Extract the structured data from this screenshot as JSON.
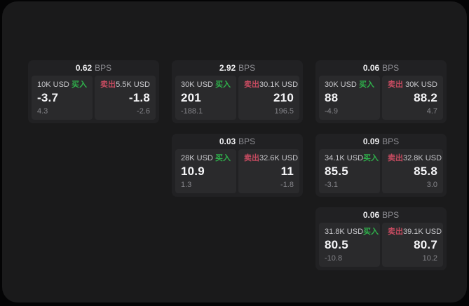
{
  "labels": {
    "buy": "买入",
    "sell": "卖出",
    "bps_unit": "BPS"
  },
  "colors": {
    "page_bg": "#040405",
    "panel_bg": "#1a1a1b",
    "card_bg": "#212123",
    "pane_bg": "#2a2a2c",
    "buy_green": "#2fb04b",
    "sell_red": "#c54b60"
  },
  "cards": [
    {
      "bps": "0.62",
      "col": 1,
      "row": 1,
      "buy": {
        "amount": "10K USD",
        "price": "-3.7",
        "change": "4.3"
      },
      "sell": {
        "amount": "5.5K USD",
        "price": "-1.8",
        "change": "-2.6"
      }
    },
    {
      "bps": "2.92",
      "col": 2,
      "row": 1,
      "buy": {
        "amount": "30K USD",
        "price": "201",
        "change": "-188.1"
      },
      "sell": {
        "amount": "30.1K USD",
        "price": "210",
        "change": "196.5"
      }
    },
    {
      "bps": "0.06",
      "col": 3,
      "row": 1,
      "buy": {
        "amount": "30K USD",
        "price": "88",
        "change": "-4.9"
      },
      "sell": {
        "amount": "30K USD",
        "price": "88.2",
        "change": "4.7"
      }
    },
    {
      "bps": "0.03",
      "col": 2,
      "row": 2,
      "buy": {
        "amount": "28K USD",
        "price": "10.9",
        "change": "1.3"
      },
      "sell": {
        "amount": "32.6K USD",
        "price": "11",
        "change": "-1.8"
      }
    },
    {
      "bps": "0.09",
      "col": 3,
      "row": 2,
      "buy": {
        "amount": "34.1K USD",
        "price": "85.5",
        "change": "-3.1"
      },
      "sell": {
        "amount": "32.8K USD",
        "price": "85.8",
        "change": "3.0"
      }
    },
    {
      "bps": "0.06",
      "col": 3,
      "row": 3,
      "buy": {
        "amount": "31.8K USD",
        "price": "80.5",
        "change": "-10.8"
      },
      "sell": {
        "amount": "39.1K USD",
        "price": "80.7",
        "change": "10.2"
      }
    }
  ]
}
